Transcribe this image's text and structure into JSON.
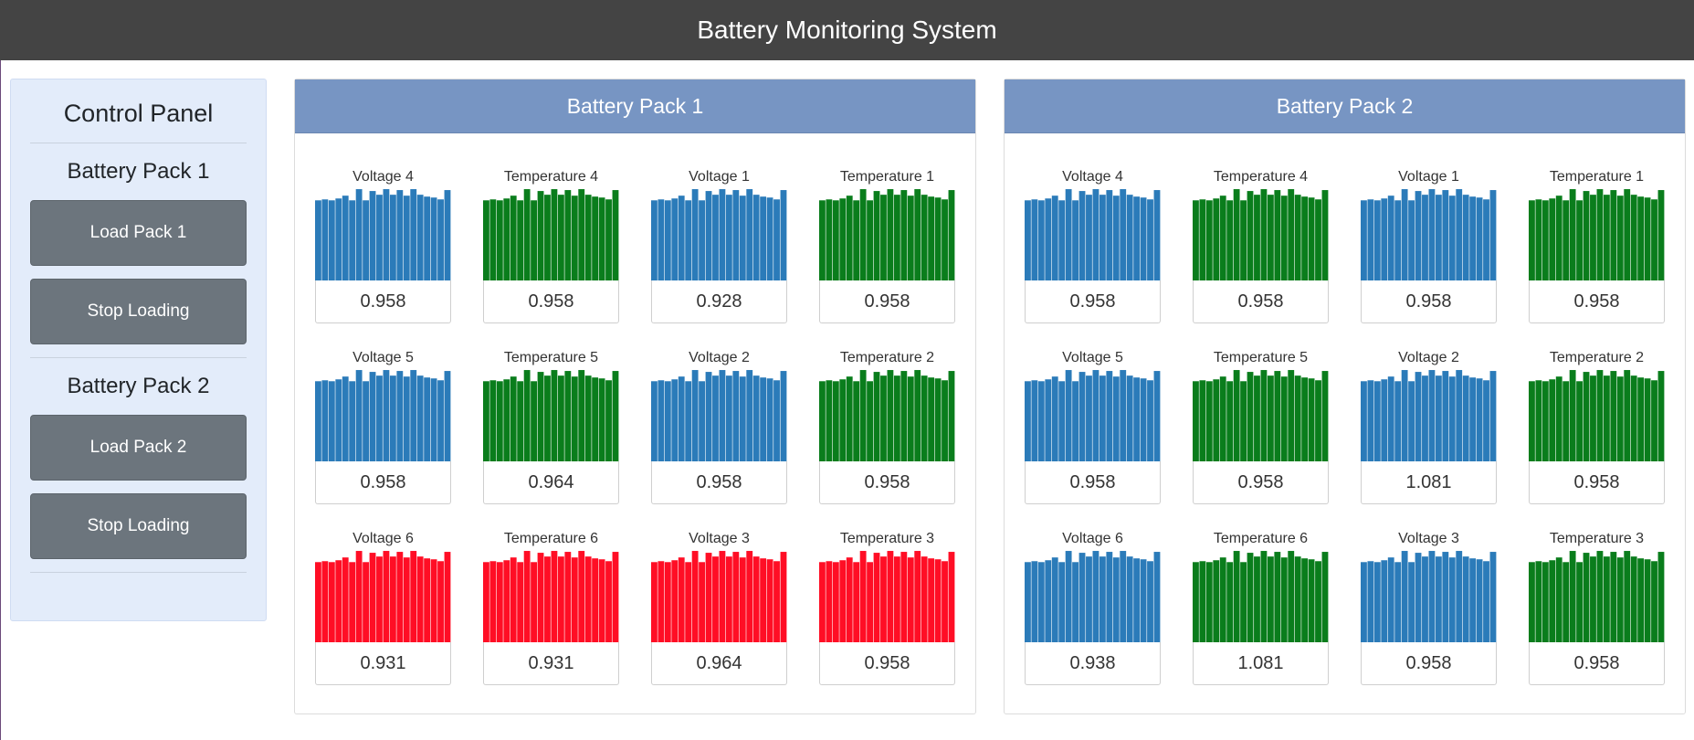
{
  "header": {
    "title": "Battery Monitoring System"
  },
  "control_panel": {
    "title": "Control Panel",
    "sections": [
      {
        "title": "Battery Pack 1",
        "load_label": "Load Pack 1",
        "stop_label": "Stop Loading"
      },
      {
        "title": "Battery Pack 2",
        "load_label": "Load Pack 2",
        "stop_label": "Stop Loading"
      }
    ]
  },
  "colors": {
    "voltage": "#2b7bb9",
    "temperature": "#0a7d1c",
    "alert": "#ff0e25"
  },
  "bar_profile": [
    0.86,
    0.87,
    0.86,
    0.88,
    0.91,
    0.86,
    0.98,
    0.86,
    0.96,
    0.92,
    0.98,
    0.92,
    0.97,
    0.91,
    0.98,
    0.92,
    0.9,
    0.89,
    0.87,
    0.97
  ],
  "packs": [
    {
      "title": "Battery Pack 1",
      "tiles": [
        {
          "label": "Voltage 4",
          "value": "0.958",
          "kind": "voltage"
        },
        {
          "label": "Temperature 4",
          "value": "0.958",
          "kind": "temperature"
        },
        {
          "label": "Voltage 1",
          "value": "0.928",
          "kind": "voltage"
        },
        {
          "label": "Temperature 1",
          "value": "0.958",
          "kind": "temperature"
        },
        {
          "label": "Voltage 5",
          "value": "0.958",
          "kind": "voltage"
        },
        {
          "label": "Temperature 5",
          "value": "0.964",
          "kind": "temperature"
        },
        {
          "label": "Voltage 2",
          "value": "0.958",
          "kind": "voltage"
        },
        {
          "label": "Temperature 2",
          "value": "0.958",
          "kind": "temperature"
        },
        {
          "label": "Voltage 6",
          "value": "0.931",
          "kind": "alert"
        },
        {
          "label": "Temperature 6",
          "value": "0.931",
          "kind": "alert"
        },
        {
          "label": "Voltage 3",
          "value": "0.964",
          "kind": "alert"
        },
        {
          "label": "Temperature 3",
          "value": "0.958",
          "kind": "alert"
        }
      ]
    },
    {
      "title": "Battery Pack 2",
      "tiles": [
        {
          "label": "Voltage 4",
          "value": "0.958",
          "kind": "voltage"
        },
        {
          "label": "Temperature 4",
          "value": "0.958",
          "kind": "temperature"
        },
        {
          "label": "Voltage 1",
          "value": "0.958",
          "kind": "voltage"
        },
        {
          "label": "Temperature 1",
          "value": "0.958",
          "kind": "temperature"
        },
        {
          "label": "Voltage 5",
          "value": "0.958",
          "kind": "voltage"
        },
        {
          "label": "Temperature 5",
          "value": "0.958",
          "kind": "temperature"
        },
        {
          "label": "Voltage 2",
          "value": "1.081",
          "kind": "voltage"
        },
        {
          "label": "Temperature 2",
          "value": "0.958",
          "kind": "temperature"
        },
        {
          "label": "Voltage 6",
          "value": "0.938",
          "kind": "voltage"
        },
        {
          "label": "Temperature 6",
          "value": "1.081",
          "kind": "temperature"
        },
        {
          "label": "Voltage 3",
          "value": "0.958",
          "kind": "voltage"
        },
        {
          "label": "Temperature 3",
          "value": "0.958",
          "kind": "temperature"
        }
      ]
    }
  ]
}
